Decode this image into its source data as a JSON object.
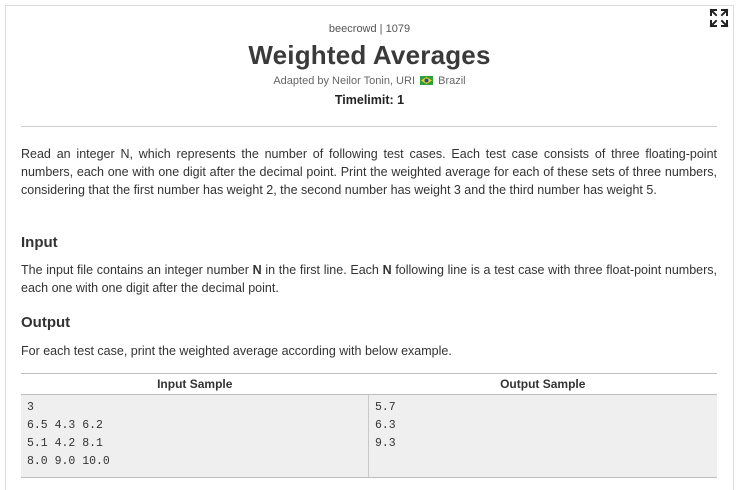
{
  "header": {
    "source": "beecrowd | 1079",
    "title": "Weighted Averages",
    "adapted_prefix": "Adapted by Neilor Tonin, URI",
    "country": "Brazil",
    "timelimit": "Timelimit: 1"
  },
  "icons": {
    "expand": "expand-icon",
    "flag": "brazil-flag-icon"
  },
  "colors": {
    "flag_green": "#2e9e3e",
    "flag_yellow": "#f2d31b",
    "flag_blue": "#1f4fa3",
    "sample_bg": "#efefef"
  },
  "description": "Read an integer N, which represents the number of following test cases. Each test case consists of three floating-point numbers, each one with one digit after the decimal point. Print the weighted average for each of these sets of three numbers, considering that the first number has weight 2, the second number has weight 3 and the third number has weight 5.",
  "input": {
    "heading": "Input",
    "text_1": "The input file contains an integer number ",
    "bold_1": "N",
    "text_2": " in the first line. Each ",
    "bold_2": "N",
    "text_3": " following line is a test case with three float-point numbers, each one with one digit after the decimal point."
  },
  "output": {
    "heading": "Output",
    "text": "For each test case, print the weighted average according with below example."
  },
  "samples": {
    "input_header": "Input Sample",
    "output_header": "Output Sample",
    "input_lines": [
      "3",
      "6.5 4.3 6.2",
      "5.1 4.2 8.1",
      "8.0 9.0 10.0"
    ],
    "output_lines": [
      "5.7",
      "6.3",
      "9.3"
    ]
  }
}
